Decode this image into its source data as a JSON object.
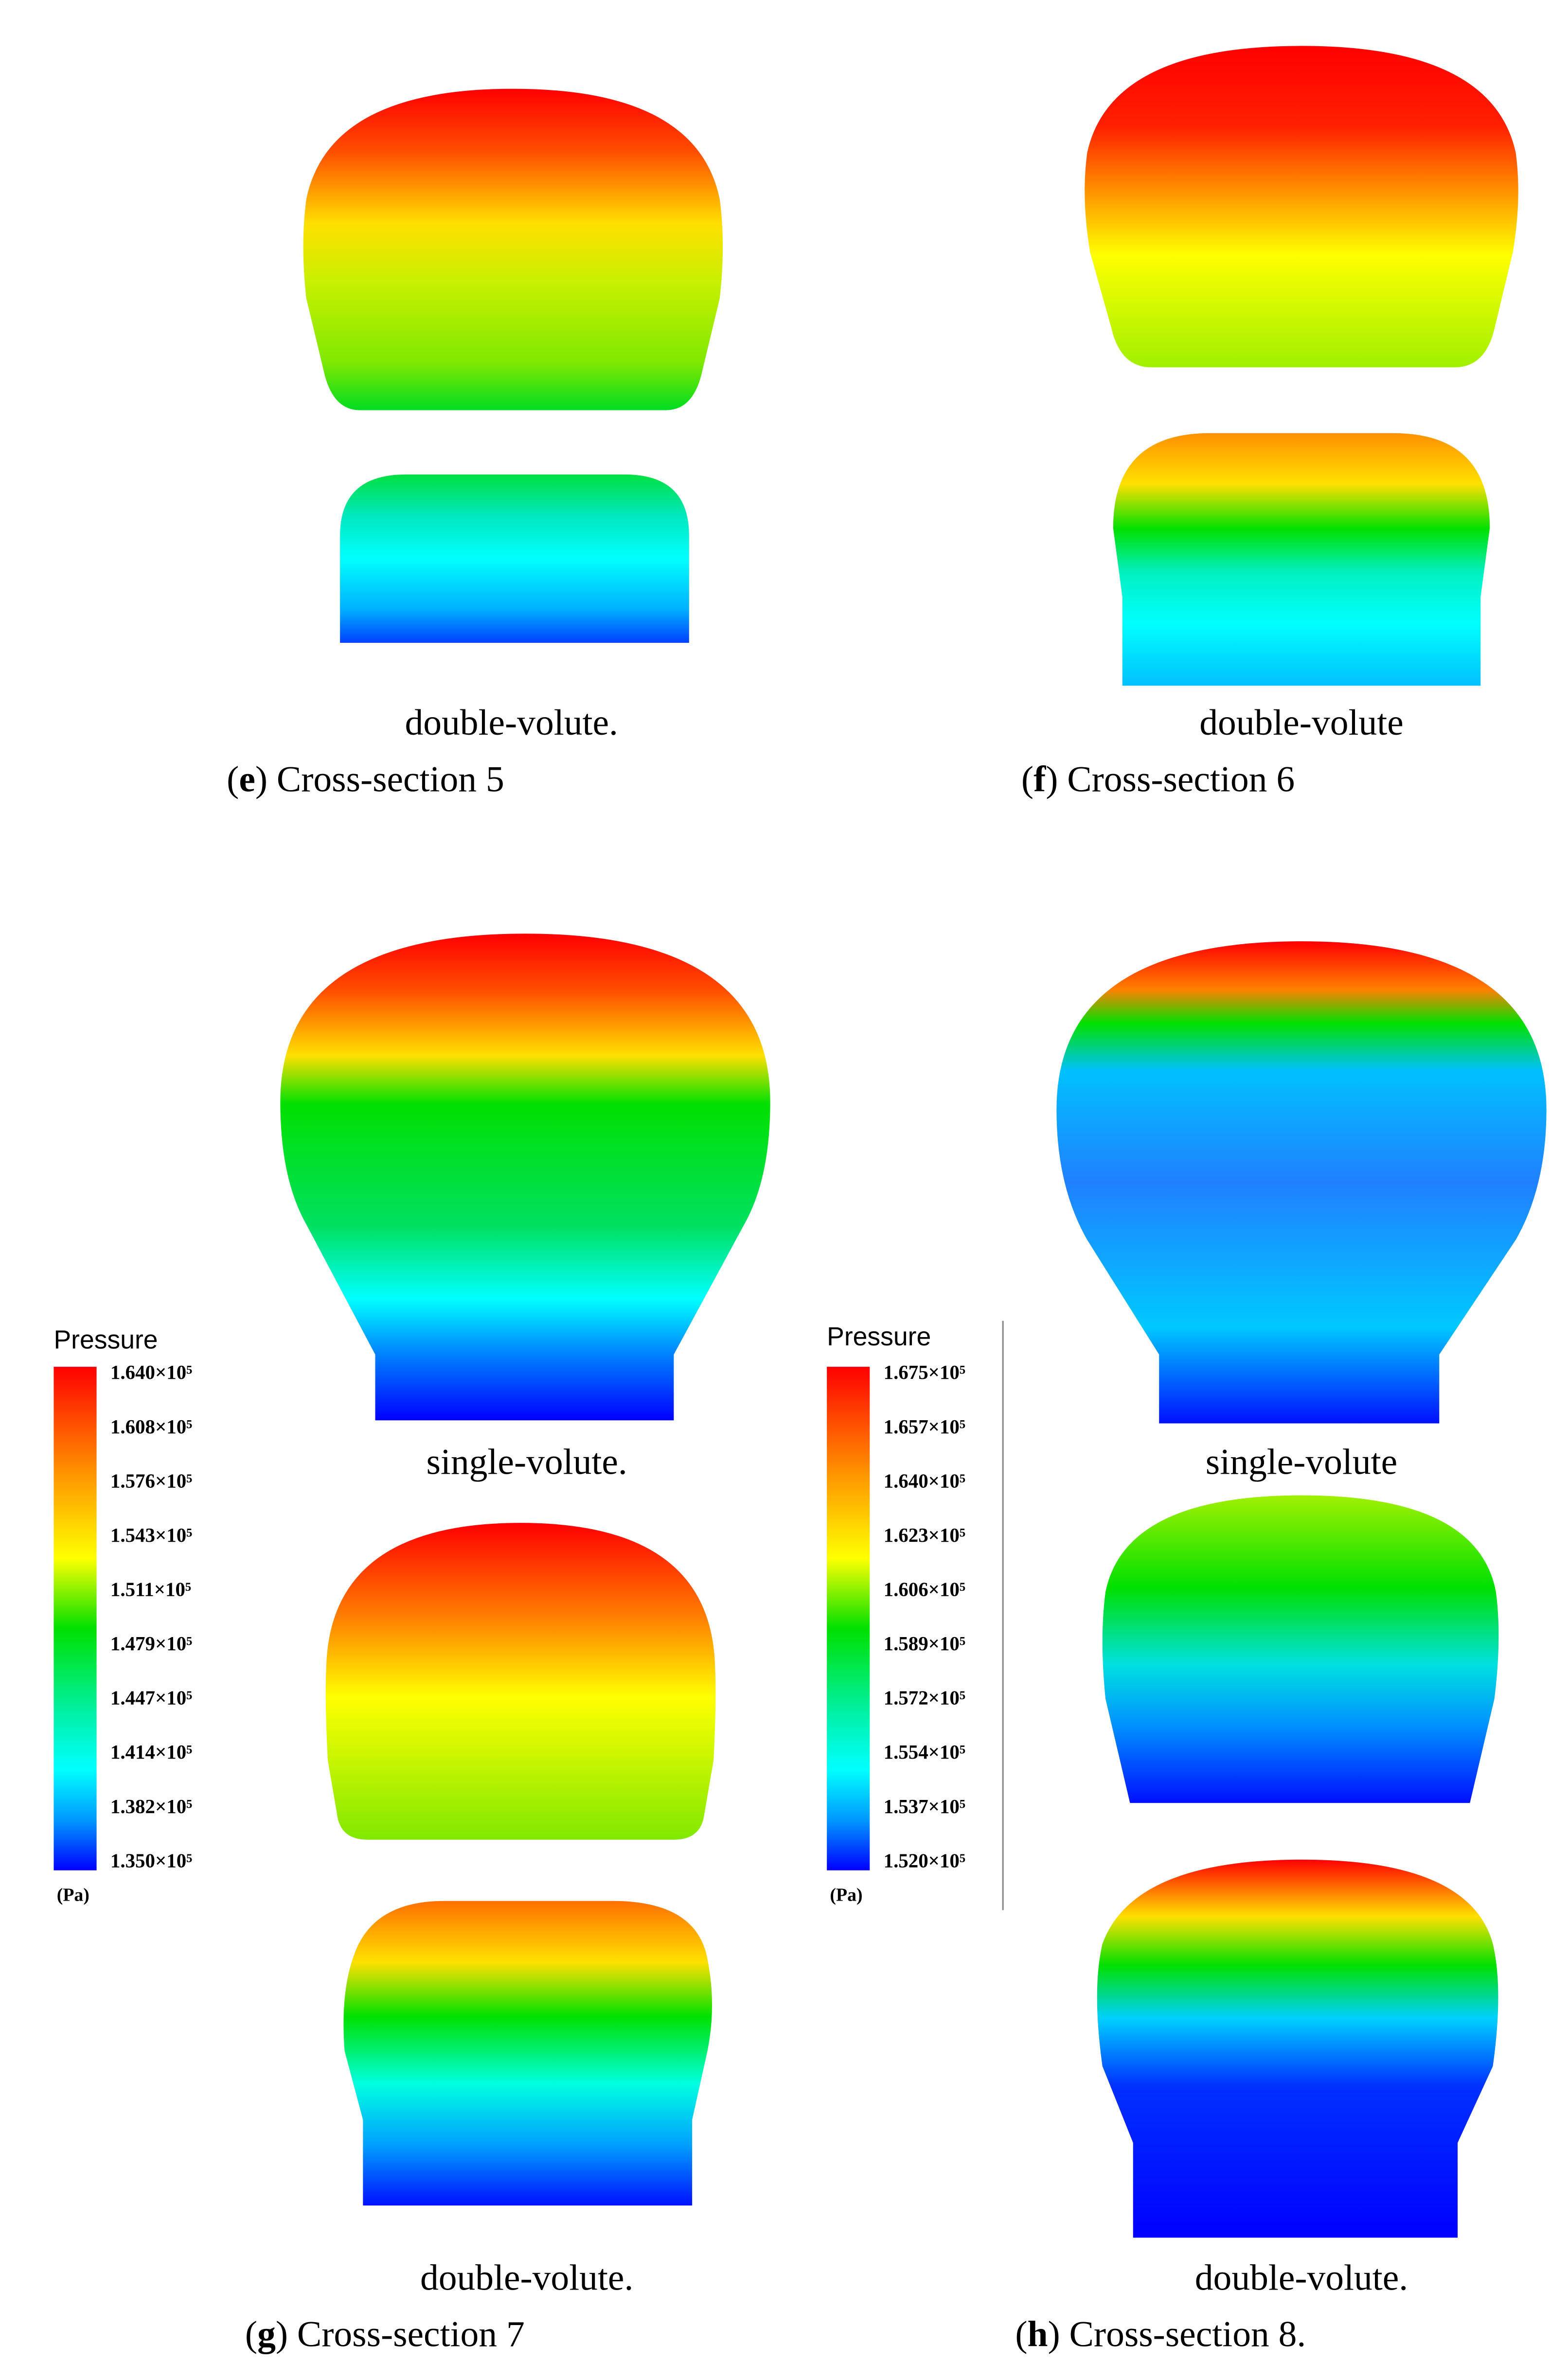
{
  "panels": [
    {
      "labels": [
        "double-volute."
      ],
      "caption": [
        "(",
        "e",
        ") Cross-section 5"
      ]
    },
    {
      "labels": [
        "double-volute"
      ],
      "caption": [
        "(",
        "f",
        ") Cross-section 6"
      ]
    },
    {
      "labels": [
        "single-volute.",
        "double-volute."
      ],
      "caption": [
        "(",
        "g",
        ") Cross-section 7"
      ]
    },
    {
      "labels": [
        "single-volute",
        "double-volute."
      ],
      "caption": [
        "(",
        "h",
        ") Cross-section 8."
      ]
    }
  ],
  "colorbars": [
    {
      "title": "Pressure",
      "unit": "(Pa)",
      "ticks": [
        "1.640×10⁵",
        "1.608×10⁵",
        "1.576×10⁵",
        "1.543×10⁵",
        "1.511×10⁵",
        "1.479×10⁵",
        "1.447×10⁵",
        "1.414×10⁵",
        "1.382×10⁵",
        "1.350×10⁵"
      ]
    },
    {
      "title": "Pressure",
      "unit": "(Pa)",
      "ticks": [
        "1.675×10⁵",
        "1.657×10⁵",
        "1.640×10⁵",
        "1.623×10⁵",
        "1.606×10⁵",
        "1.589×10⁵",
        "1.572×10⁵",
        "1.554×10⁵",
        "1.537×10⁵",
        "1.520×10⁵"
      ]
    }
  ]
}
